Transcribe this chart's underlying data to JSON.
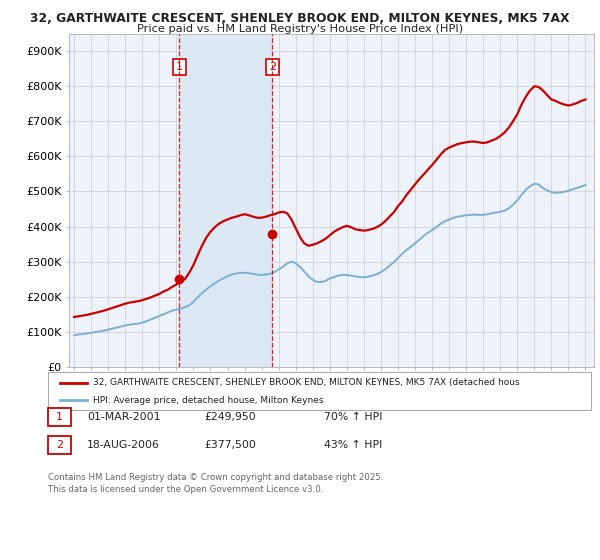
{
  "title_line1": "32, GARTHWAITE CRESCENT, SHENLEY BROOK END, MILTON KEYNES, MK5 7AX",
  "title_line2": "Price paid vs. HM Land Registry's House Price Index (HPI)",
  "ylim": [
    0,
    950000
  ],
  "yticks": [
    0,
    100000,
    200000,
    300000,
    400000,
    500000,
    600000,
    700000,
    800000,
    900000
  ],
  "ytick_labels": [
    "£0",
    "£100K",
    "£200K",
    "£300K",
    "£400K",
    "£500K",
    "£600K",
    "£700K",
    "£800K",
    "£900K"
  ],
  "purchase1_x": 2001.17,
  "purchase1_price": 249950,
  "purchase2_x": 2006.63,
  "purchase2_price": 377500,
  "purchase1_pct": "70% ↑ HPI",
  "purchase2_pct": "43% ↑ HPI",
  "legend_line1": "32, GARTHWAITE CRESCENT, SHENLEY BROOK END, MILTON KEYNES, MK5 7AX (detached hous",
  "legend_line2": "HPI: Average price, detached house, Milton Keynes",
  "footer": "Contains HM Land Registry data © Crown copyright and database right 2025.\nThis data is licensed under the Open Government Licence v3.0.",
  "property_color": "#cc0000",
  "hpi_color": "#7bafd4",
  "vline_color": "#cc0000",
  "highlight_color": "#dce9f5",
  "grid_color": "#cccccc",
  "background_color": "#ffffff",
  "plot_bg_color": "#eef2fa",
  "xlim_left": 1994.7,
  "xlim_right": 2025.5,
  "hpi_years": [
    1995.0,
    1995.25,
    1995.5,
    1995.75,
    1996.0,
    1996.25,
    1996.5,
    1996.75,
    1997.0,
    1997.25,
    1997.5,
    1997.75,
    1998.0,
    1998.25,
    1998.5,
    1998.75,
    1999.0,
    1999.25,
    1999.5,
    1999.75,
    2000.0,
    2000.25,
    2000.5,
    2000.75,
    2001.0,
    2001.25,
    2001.5,
    2001.75,
    2002.0,
    2002.25,
    2002.5,
    2002.75,
    2003.0,
    2003.25,
    2003.5,
    2003.75,
    2004.0,
    2004.25,
    2004.5,
    2004.75,
    2005.0,
    2005.25,
    2005.5,
    2005.75,
    2006.0,
    2006.25,
    2006.5,
    2006.75,
    2007.0,
    2007.25,
    2007.5,
    2007.75,
    2008.0,
    2008.25,
    2008.5,
    2008.75,
    2009.0,
    2009.25,
    2009.5,
    2009.75,
    2010.0,
    2010.25,
    2010.5,
    2010.75,
    2011.0,
    2011.25,
    2011.5,
    2011.75,
    2012.0,
    2012.25,
    2012.5,
    2012.75,
    2013.0,
    2013.25,
    2013.5,
    2013.75,
    2014.0,
    2014.25,
    2014.5,
    2014.75,
    2015.0,
    2015.25,
    2015.5,
    2015.75,
    2016.0,
    2016.25,
    2016.5,
    2016.75,
    2017.0,
    2017.25,
    2017.5,
    2017.75,
    2018.0,
    2018.25,
    2018.5,
    2018.75,
    2019.0,
    2019.25,
    2019.5,
    2019.75,
    2020.0,
    2020.25,
    2020.5,
    2020.75,
    2021.0,
    2021.25,
    2021.5,
    2021.75,
    2022.0,
    2022.25,
    2022.5,
    2022.75,
    2023.0,
    2023.25,
    2023.5,
    2023.75,
    2024.0,
    2024.25,
    2024.5,
    2024.75,
    2025.0
  ],
  "hpi_values": [
    90000,
    92000,
    93000,
    95000,
    97000,
    99000,
    101000,
    103000,
    106000,
    109000,
    112000,
    115000,
    118000,
    120000,
    122000,
    123000,
    126000,
    130000,
    135000,
    140000,
    145000,
    150000,
    155000,
    160000,
    163000,
    166000,
    170000,
    175000,
    185000,
    198000,
    210000,
    220000,
    230000,
    238000,
    246000,
    252000,
    258000,
    263000,
    266000,
    268000,
    268000,
    267000,
    265000,
    263000,
    262000,
    263000,
    265000,
    270000,
    278000,
    285000,
    295000,
    300000,
    295000,
    285000,
    272000,
    258000,
    248000,
    242000,
    242000,
    245000,
    252000,
    256000,
    260000,
    262000,
    262000,
    260000,
    258000,
    256000,
    255000,
    257000,
    260000,
    264000,
    270000,
    278000,
    288000,
    298000,
    310000,
    322000,
    333000,
    342000,
    352000,
    362000,
    373000,
    382000,
    390000,
    398000,
    408000,
    415000,
    420000,
    425000,
    428000,
    430000,
    432000,
    433000,
    434000,
    433000,
    433000,
    435000,
    438000,
    440000,
    442000,
    445000,
    452000,
    462000,
    475000,
    490000,
    505000,
    515000,
    522000,
    520000,
    510000,
    503000,
    498000,
    496000,
    497000,
    499000,
    502000,
    506000,
    510000,
    514000,
    518000
  ],
  "prop_years": [
    1995.0,
    1995.25,
    1995.5,
    1995.75,
    1996.0,
    1996.25,
    1996.5,
    1996.75,
    1997.0,
    1997.25,
    1997.5,
    1997.75,
    1998.0,
    1998.25,
    1998.5,
    1998.75,
    1999.0,
    1999.25,
    1999.5,
    1999.75,
    2000.0,
    2000.25,
    2000.5,
    2000.75,
    2001.0,
    2001.25,
    2001.5,
    2001.75,
    2002.0,
    2002.25,
    2002.5,
    2002.75,
    2003.0,
    2003.25,
    2003.5,
    2003.75,
    2004.0,
    2004.25,
    2004.5,
    2004.75,
    2005.0,
    2005.25,
    2005.5,
    2005.75,
    2006.0,
    2006.25,
    2006.5,
    2006.75,
    2007.0,
    2007.25,
    2007.5,
    2007.75,
    2008.0,
    2008.25,
    2008.5,
    2008.75,
    2009.0,
    2009.25,
    2009.5,
    2009.75,
    2010.0,
    2010.25,
    2010.5,
    2010.75,
    2011.0,
    2011.25,
    2011.5,
    2011.75,
    2012.0,
    2012.25,
    2012.5,
    2012.75,
    2013.0,
    2013.25,
    2013.5,
    2013.75,
    2014.0,
    2014.25,
    2014.5,
    2014.75,
    2015.0,
    2015.25,
    2015.5,
    2015.75,
    2016.0,
    2016.25,
    2016.5,
    2016.75,
    2017.0,
    2017.25,
    2017.5,
    2017.75,
    2018.0,
    2018.25,
    2018.5,
    2018.75,
    2019.0,
    2019.25,
    2019.5,
    2019.75,
    2020.0,
    2020.25,
    2020.5,
    2020.75,
    2021.0,
    2021.25,
    2021.5,
    2021.75,
    2022.0,
    2022.25,
    2022.5,
    2022.75,
    2023.0,
    2023.25,
    2023.5,
    2023.75,
    2024.0,
    2024.25,
    2024.5,
    2024.75,
    2025.0
  ],
  "prop_values": [
    142000,
    144000,
    146000,
    148000,
    151000,
    154000,
    157000,
    160000,
    164000,
    168000,
    172000,
    176000,
    180000,
    183000,
    185000,
    187000,
    190000,
    194000,
    198000,
    203000,
    208000,
    215000,
    220000,
    228000,
    235000,
    242000,
    250000,
    268000,
    290000,
    318000,
    345000,
    368000,
    385000,
    398000,
    408000,
    415000,
    420000,
    425000,
    428000,
    432000,
    435000,
    432000,
    428000,
    425000,
    425000,
    428000,
    432000,
    435000,
    440000,
    442000,
    438000,
    420000,
    395000,
    370000,
    352000,
    345000,
    348000,
    352000,
    358000,
    365000,
    375000,
    385000,
    392000,
    398000,
    402000,
    398000,
    392000,
    390000,
    388000,
    390000,
    393000,
    398000,
    405000,
    415000,
    428000,
    440000,
    458000,
    472000,
    490000,
    505000,
    520000,
    535000,
    548000,
    562000,
    575000,
    590000,
    605000,
    618000,
    625000,
    630000,
    635000,
    638000,
    640000,
    642000,
    642000,
    640000,
    638000,
    640000,
    645000,
    650000,
    658000,
    668000,
    682000,
    700000,
    720000,
    748000,
    770000,
    788000,
    800000,
    798000,
    788000,
    775000,
    762000,
    758000,
    752000,
    748000,
    745000,
    748000,
    752000,
    758000,
    762000
  ]
}
